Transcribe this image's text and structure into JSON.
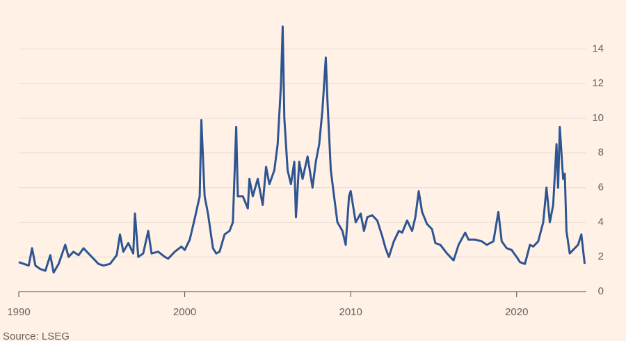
{
  "chart_data": {
    "type": "line",
    "source": "Source: LSEG",
    "x": [
      1990.0,
      1990.3,
      1990.6,
      1990.8,
      1991.0,
      1991.3,
      1991.6,
      1991.9,
      1992.1,
      1992.4,
      1992.8,
      1993.0,
      1993.3,
      1993.6,
      1993.9,
      1994.2,
      1994.5,
      1994.8,
      1995.1,
      1995.5,
      1995.9,
      1996.1,
      1996.3,
      1996.6,
      1996.9,
      1997.0,
      1997.2,
      1997.5,
      1997.8,
      1998.0,
      1998.4,
      1998.8,
      1999.0,
      1999.4,
      1999.8,
      2000.0,
      2000.3,
      2000.6,
      2000.9,
      2001.0,
      2001.2,
      2001.4,
      2001.7,
      2001.9,
      2002.1,
      2002.4,
      2002.7,
      2002.9,
      2003.1,
      2003.2,
      2003.5,
      2003.8,
      2003.9,
      2004.1,
      2004.4,
      2004.7,
      2004.9,
      2005.1,
      2005.4,
      2005.6,
      2005.8,
      2005.9,
      2006.0,
      2006.2,
      2006.4,
      2006.6,
      2006.7,
      2006.9,
      2007.1,
      2007.4,
      2007.7,
      2007.9,
      2008.1,
      2008.3,
      2008.5,
      2008.6,
      2008.8,
      2009.0,
      2009.2,
      2009.5,
      2009.7,
      2009.9,
      2010.0,
      2010.3,
      2010.6,
      2010.8,
      2011.0,
      2011.3,
      2011.6,
      2011.9,
      2012.1,
      2012.3,
      2012.6,
      2012.9,
      2013.1,
      2013.4,
      2013.7,
      2013.9,
      2014.1,
      2014.3,
      2014.6,
      2014.9,
      2015.1,
      2015.4,
      2015.8,
      2016.0,
      2016.2,
      2016.5,
      2016.9,
      2017.1,
      2017.5,
      2017.9,
      2018.2,
      2018.6,
      2018.9,
      2019.1,
      2019.4,
      2019.7,
      2020.0,
      2020.2,
      2020.5,
      2020.8,
      2021.0,
      2021.3,
      2021.6,
      2021.8,
      2022.0,
      2022.2,
      2022.4,
      2022.5,
      2022.6,
      2022.8,
      2022.9,
      2023.0,
      2023.2,
      2023.5,
      2023.7,
      2023.9,
      2024.1
    ],
    "series": [
      {
        "color": "#2e5592",
        "values": [
          1.7,
          1.6,
          1.5,
          2.5,
          1.5,
          1.3,
          1.2,
          2.1,
          1.1,
          1.6,
          2.7,
          2.0,
          2.3,
          2.1,
          2.5,
          2.2,
          1.9,
          1.6,
          1.5,
          1.6,
          2.1,
          3.3,
          2.3,
          2.8,
          2.2,
          4.5,
          2.0,
          2.2,
          3.5,
          2.2,
          2.3,
          2.0,
          1.9,
          2.3,
          2.6,
          2.4,
          3.0,
          4.2,
          5.5,
          9.9,
          5.5,
          4.5,
          2.5,
          2.2,
          2.3,
          3.3,
          3.5,
          4.0,
          9.5,
          5.5,
          5.5,
          4.8,
          6.5,
          5.5,
          6.5,
          5.0,
          7.2,
          6.2,
          7.0,
          8.5,
          12.0,
          15.3,
          10.0,
          7.0,
          6.2,
          7.5,
          4.3,
          7.5,
          6.5,
          7.8,
          6.0,
          7.5,
          8.5,
          10.5,
          13.5,
          11.0,
          7.0,
          5.5,
          4.0,
          3.5,
          2.7,
          5.5,
          5.8,
          4.0,
          4.5,
          3.5,
          4.3,
          4.4,
          4.1,
          3.2,
          2.5,
          2.0,
          2.9,
          3.5,
          3.4,
          4.1,
          3.5,
          4.3,
          5.8,
          4.6,
          3.9,
          3.6,
          2.8,
          2.7,
          2.2,
          2.0,
          1.8,
          2.7,
          3.4,
          3.0,
          3.0,
          2.9,
          2.7,
          2.9,
          4.6,
          2.9,
          2.5,
          2.4,
          2.0,
          1.7,
          1.6,
          2.7,
          2.6,
          2.9,
          4.0,
          6.0,
          4.0,
          5.0,
          8.5,
          6.0,
          9.5,
          6.5,
          6.8,
          3.5,
          2.2,
          2.5,
          2.7,
          3.3,
          1.6
        ]
      }
    ],
    "xlim": [
      1990,
      2024.2
    ],
    "xticks": [
      1990,
      2000,
      2010,
      2020
    ],
    "ylim": [
      0,
      15.5
    ],
    "yticks": [
      0,
      2,
      4,
      6,
      8,
      10,
      12,
      14
    ],
    "grid": true
  }
}
